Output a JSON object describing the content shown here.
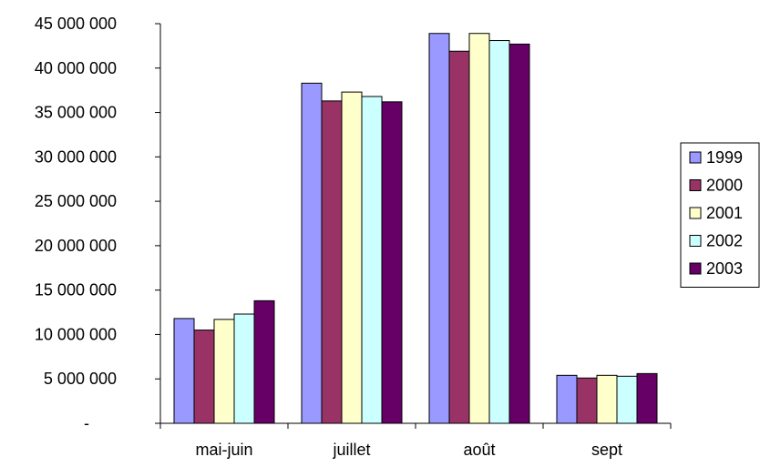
{
  "chart_data": {
    "type": "bar",
    "title": "",
    "xlabel": "",
    "ylabel": "",
    "categories": [
      "mai-juin",
      "juillet",
      "août",
      "sept"
    ],
    "ylim": [
      0,
      45000000
    ],
    "yticks": [
      0,
      5000000,
      10000000,
      15000000,
      20000000,
      25000000,
      30000000,
      35000000,
      40000000,
      45000000
    ],
    "ytick_labels": [
      "-",
      "5 000 000",
      "10 000 000",
      "15 000 000",
      "20 000 000",
      "25 000 000",
      "30 000 000",
      "35 000 000",
      "40 000 000",
      "45 000 000"
    ],
    "grid": false,
    "legend_position": "right",
    "series": [
      {
        "name": "1999",
        "color": "#9999ff",
        "values": [
          11800000,
          38300000,
          43900000,
          5400000
        ]
      },
      {
        "name": "2000",
        "color": "#993366",
        "values": [
          10500000,
          36300000,
          41900000,
          5100000
        ]
      },
      {
        "name": "2001",
        "color": "#ffffcc",
        "values": [
          11700000,
          37300000,
          43900000,
          5400000
        ]
      },
      {
        "name": "2002",
        "color": "#ccffff",
        "values": [
          12300000,
          36800000,
          43100000,
          5300000
        ]
      },
      {
        "name": "2003",
        "color": "#660066",
        "values": [
          13800000,
          36200000,
          42700000,
          5600000
        ]
      }
    ]
  }
}
